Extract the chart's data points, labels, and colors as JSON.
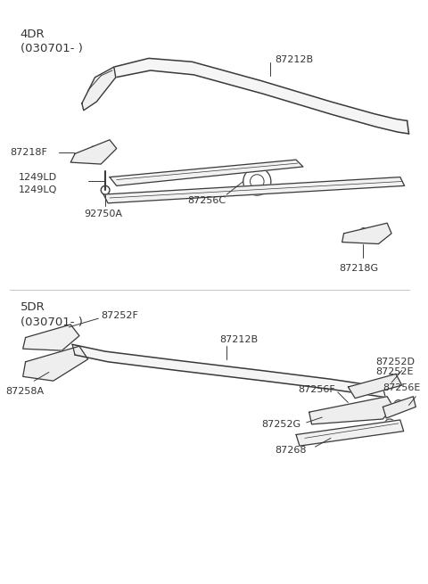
{
  "bg_color": "#ffffff",
  "line_color": "#3a3a3a",
  "section1_label": "4DR",
  "section1_sub": "(030701- )",
  "section2_label": "5DR",
  "section2_sub": "(030701- )"
}
